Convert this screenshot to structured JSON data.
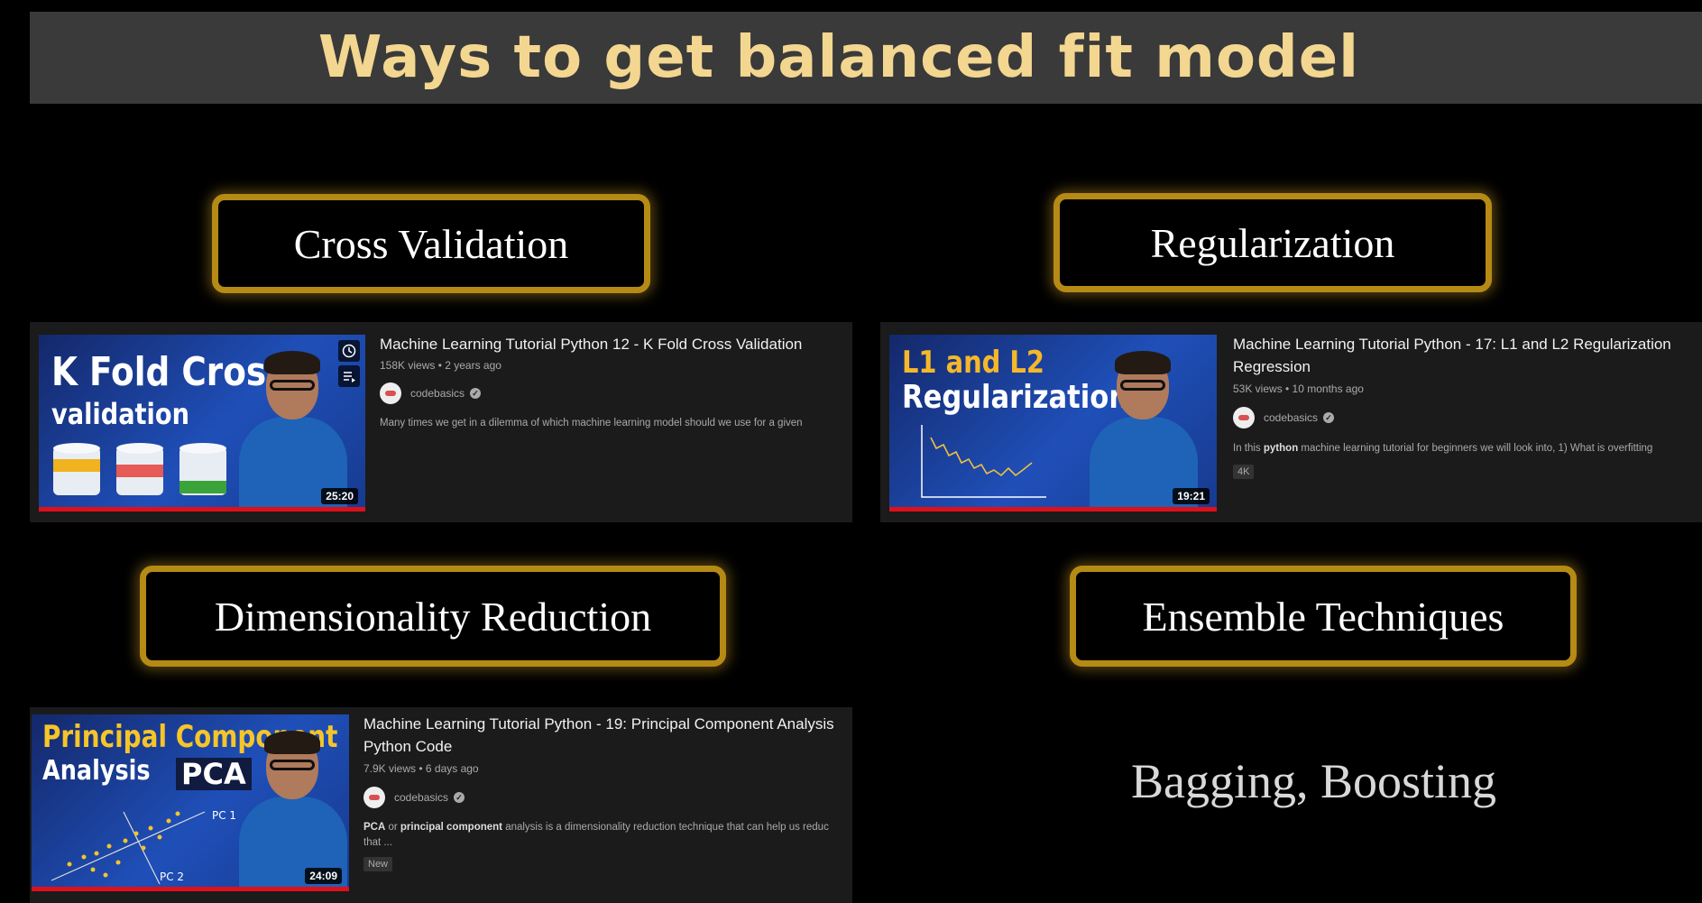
{
  "slide_title": "Ways to get balanced fit model",
  "colors": {
    "title_bg": "#3a3a3a",
    "title_text": "#f3d690",
    "tag_border": "#b58a15",
    "card_bg": "#1b1b1b",
    "progress": "#e0101a"
  },
  "sections": [
    {
      "label": "Cross Validation"
    },
    {
      "label": "Regularization"
    },
    {
      "label": "Dimensionality Reduction"
    },
    {
      "label": "Ensemble Techniques"
    }
  ],
  "videos": [
    {
      "thumb_line1": "K Fold Cross",
      "thumb_line2": "validation",
      "duration": "25:20",
      "title": "Machine Learning Tutorial Python 12 - K Fold Cross Validation",
      "meta": "158K views • 2 years ago",
      "channel": "codebasics",
      "description": "Many times we get in a dilemma of which machine learning model should we use for a given",
      "icons": [
        "clock-icon",
        "queue-icon"
      ]
    },
    {
      "thumb_line1": "L1 and L2",
      "thumb_line2": "Regularization",
      "duration": "19:21",
      "title_line1": "Machine Learning Tutorial Python - 17: L1 and L2 Regularization",
      "title_line2": "Regression",
      "meta": "53K views • 10 months ago",
      "channel": "codebasics",
      "description_pre": "In this ",
      "description_bold": "python",
      "description_post": " machine learning tutorial for beginners we will look into, 1) What is overfitting",
      "badge": "4K"
    },
    {
      "thumb_line1": "Principal Component",
      "thumb_line2": "Analysis",
      "thumb_line3": "PCA",
      "thumb_pc1": "PC 1",
      "thumb_pc2": "PC 2",
      "duration": "24:09",
      "title_line1": "Machine Learning Tutorial Python - 19: Principal Component Analysis",
      "title_line2": "Python Code",
      "meta": "7.9K views • 6 days ago",
      "channel": "codebasics",
      "desc_b1": "PCA",
      "desc_t1": " or ",
      "desc_b2": "principal component",
      "desc_t2": " analysis is a dimensionality reduction technique that can help us reduc",
      "desc_line2": "that ...",
      "badge": "New"
    }
  ],
  "ensemble_text": "Bagging, Boosting"
}
